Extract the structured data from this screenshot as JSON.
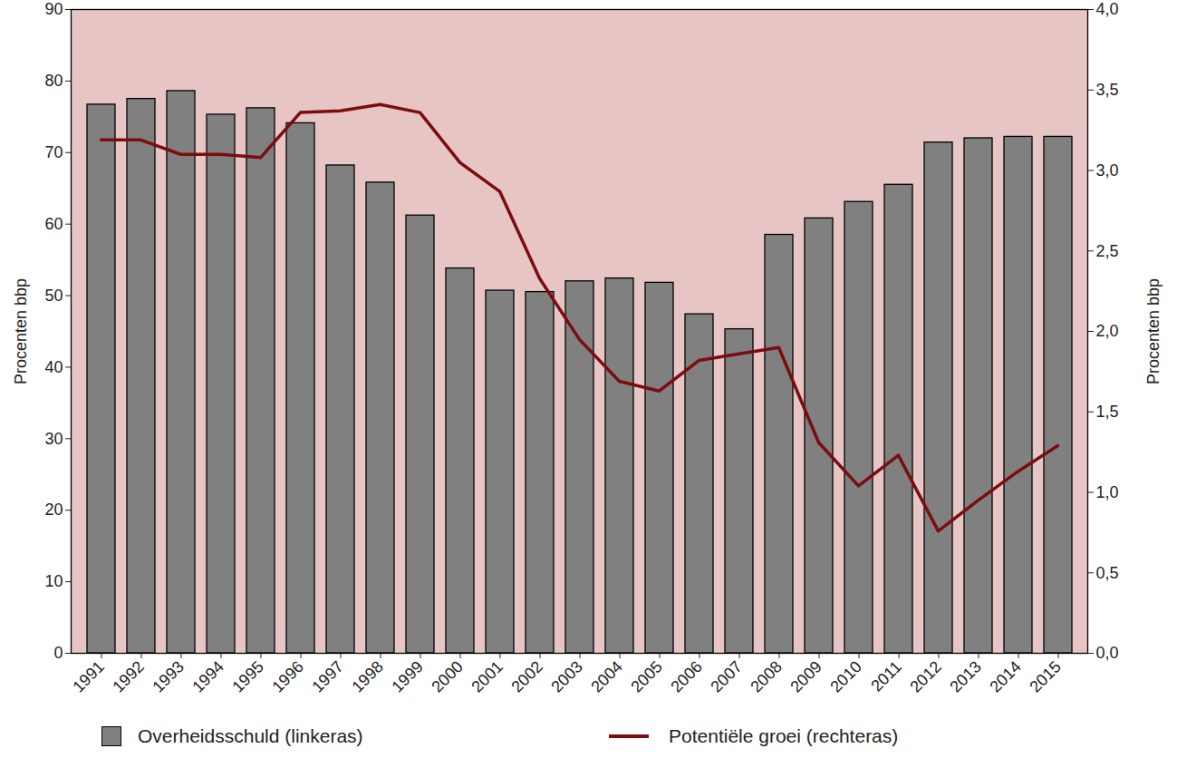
{
  "chart_data": {
    "type": "bar",
    "categories": [
      1991,
      1992,
      1993,
      1994,
      1995,
      1996,
      1997,
      1998,
      1999,
      2000,
      2001,
      2002,
      2003,
      2004,
      2005,
      2006,
      2007,
      2008,
      2009,
      2010,
      2011,
      2012,
      2013,
      2014,
      2015
    ],
    "ylabel": "Procenten bbp",
    "y2label": "Procenten bbp",
    "ylim": [
      0,
      90
    ],
    "yticks": [
      0,
      10,
      20,
      30,
      40,
      50,
      60,
      70,
      80,
      90
    ],
    "y2lim": [
      0,
      4
    ],
    "y2ticks": [
      {
        "value": 0,
        "label": "0,0"
      },
      {
        "value": 0.5,
        "label": "0,5"
      },
      {
        "value": 1,
        "label": "1,0"
      },
      {
        "value": 1.5,
        "label": "1,5"
      },
      {
        "value": 2,
        "label": "2,0"
      },
      {
        "value": 2.5,
        "label": "2,5"
      },
      {
        "value": 3,
        "label": "3,0"
      },
      {
        "value": 3.5,
        "label": "3,5"
      },
      {
        "value": 4,
        "label": "4,0"
      }
    ],
    "legend": "bottom",
    "series": [
      {
        "name": "Overheidsschuld (linkeras)",
        "type": "bar",
        "color": "#808080",
        "values": [
          76.7,
          77.5,
          78.6,
          75.3,
          76.2,
          74.1,
          68.2,
          65.8,
          61.2,
          53.8,
          50.7,
          50.5,
          52.0,
          52.4,
          51.8,
          47.4,
          45.3,
          58.5,
          60.8,
          63.1,
          65.5,
          71.4,
          72.0,
          72.2,
          72.2
        ]
      },
      {
        "name": "Potentiële groei (rechteras)",
        "type": "line",
        "axis": "y2",
        "color": "#7b0d10",
        "values": [
          3.19,
          3.19,
          3.1,
          3.1,
          3.08,
          3.36,
          3.37,
          3.41,
          3.36,
          3.05,
          2.87,
          2.33,
          1.95,
          1.69,
          1.63,
          1.82,
          1.86,
          1.9,
          1.31,
          1.04,
          1.23,
          0.76,
          0.95,
          1.13,
          1.29
        ]
      }
    ]
  }
}
